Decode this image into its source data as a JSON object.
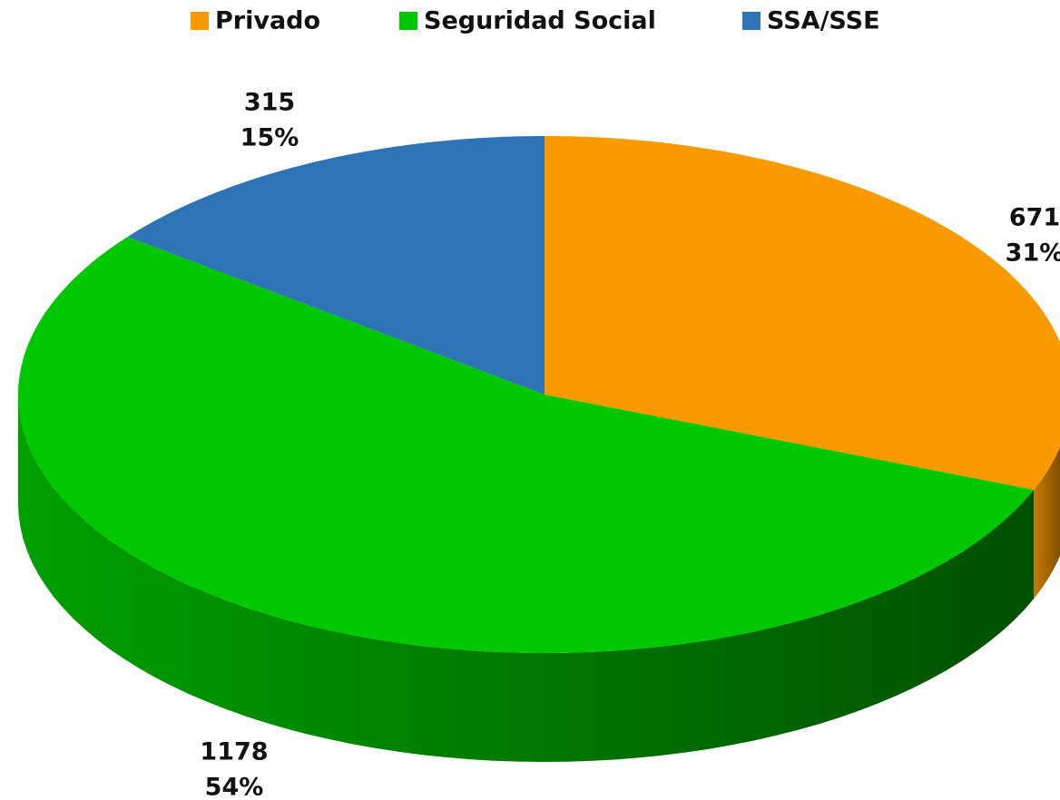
{
  "chart_data": {
    "type": "pie3d",
    "categories": [
      "Privado",
      "Seguridad Social",
      "SSA/SSE"
    ],
    "values": [
      671,
      1178,
      315
    ],
    "percent_labels": [
      "31%",
      "54%",
      "15%"
    ],
    "colors": [
      "#f99a00",
      "#00c800",
      "#2e74b5"
    ],
    "legend": "top"
  }
}
